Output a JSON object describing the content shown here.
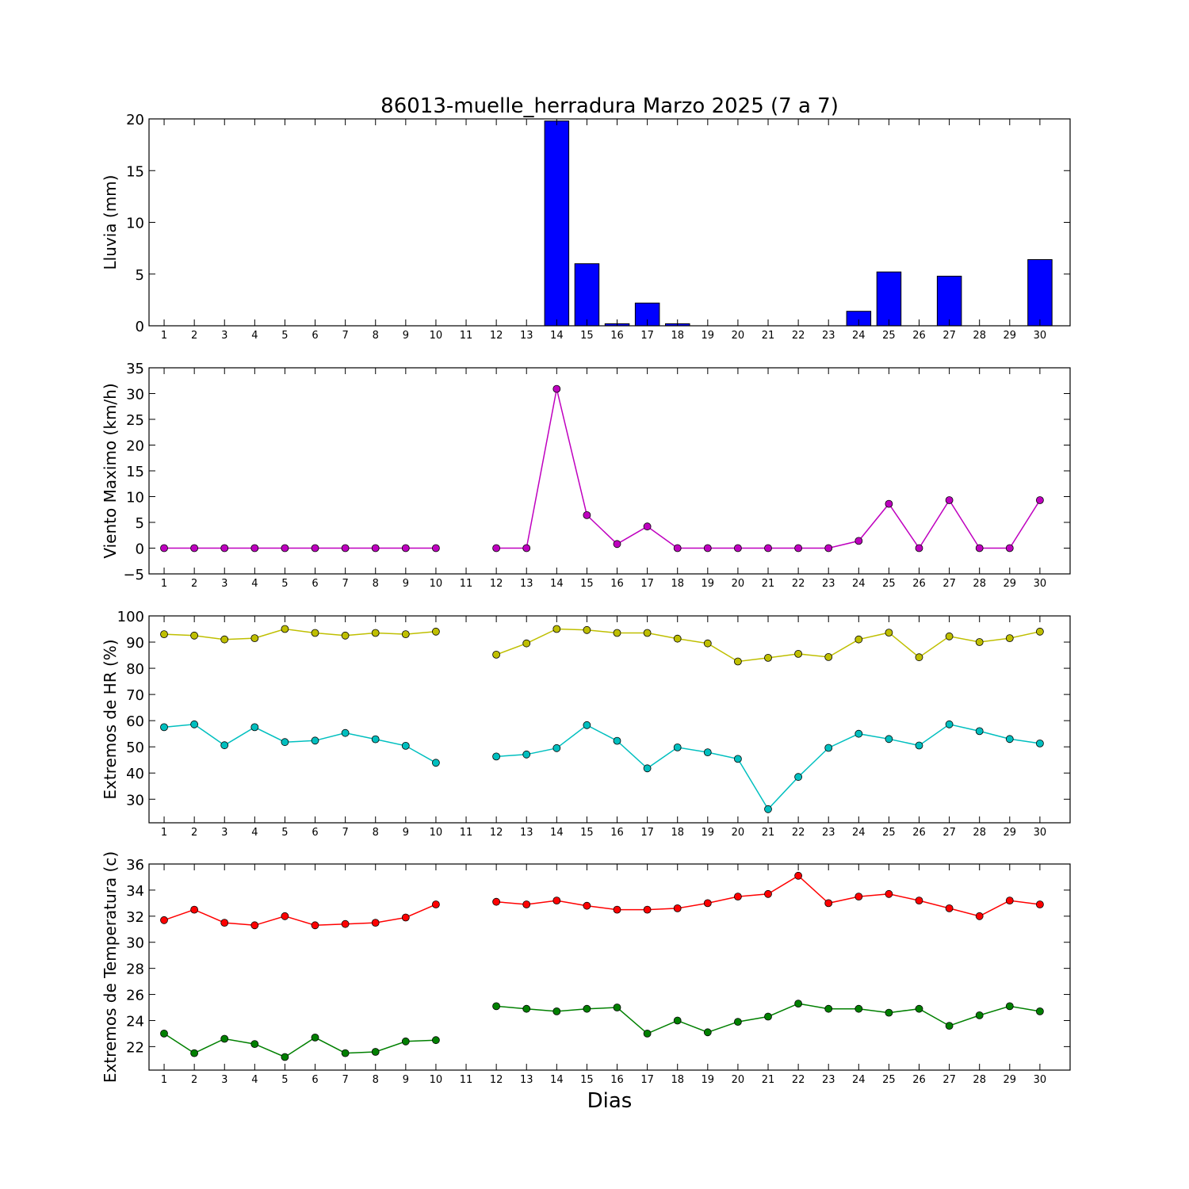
{
  "figure": {
    "title": "86013-muelle_herradura Marzo 2025  (7 a 7)",
    "xlabel": "Dias"
  },
  "chart_data": [
    {
      "id": "lluvia",
      "type": "bar",
      "ylabel": "Lluvia (mm)",
      "ylim": [
        0,
        20
      ],
      "yticks": [
        0,
        5,
        10,
        15,
        20
      ],
      "xlim": [
        0.5,
        31
      ],
      "xticks": [
        1,
        2,
        3,
        4,
        5,
        6,
        7,
        8,
        9,
        10,
        11,
        12,
        13,
        14,
        15,
        16,
        17,
        18,
        19,
        20,
        21,
        22,
        23,
        24,
        25,
        26,
        27,
        28,
        29,
        30
      ],
      "grid": false,
      "series": [
        {
          "color": "#0000ff",
          "x": [
            1,
            2,
            3,
            4,
            5,
            6,
            7,
            8,
            9,
            10,
            11,
            12,
            13,
            14,
            15,
            16,
            17,
            18,
            19,
            20,
            21,
            22,
            23,
            24,
            25,
            26,
            27,
            28,
            29,
            30
          ],
          "values": [
            0,
            0,
            0,
            0,
            0,
            0,
            0,
            0,
            0,
            0,
            0,
            0,
            0,
            19.8,
            6.0,
            0.2,
            2.2,
            0.2,
            0,
            0,
            0,
            0,
            0,
            1.4,
            5.2,
            0,
            4.8,
            0,
            0,
            6.4
          ]
        }
      ]
    },
    {
      "id": "viento",
      "type": "line",
      "ylabel": "Viento Maximo (km/h)",
      "ylim": [
        -5,
        35
      ],
      "yticks": [
        -5,
        0,
        5,
        10,
        15,
        20,
        25,
        30,
        35
      ],
      "xlim": [
        0.5,
        31
      ],
      "xticks": [
        1,
        2,
        3,
        4,
        5,
        6,
        7,
        8,
        9,
        10,
        11,
        12,
        13,
        14,
        15,
        16,
        17,
        18,
        19,
        20,
        21,
        22,
        23,
        24,
        25,
        26,
        27,
        28,
        29,
        30
      ],
      "grid": false,
      "series": [
        {
          "color": "#bf00bf",
          "x": [
            1,
            2,
            3,
            4,
            5,
            6,
            7,
            8,
            9,
            10,
            11,
            12,
            13,
            14,
            15,
            16,
            17,
            18,
            19,
            20,
            21,
            22,
            23,
            24,
            25,
            26,
            27,
            28,
            29,
            30
          ],
          "values": [
            0,
            0,
            0,
            0,
            0,
            0,
            0,
            0,
            0,
            0,
            null,
            0,
            0,
            30.9,
            6.4,
            0.8,
            4.2,
            0,
            0,
            0,
            0,
            0,
            0,
            1.4,
            8.6,
            0,
            9.3,
            0,
            0,
            9.3
          ]
        }
      ]
    },
    {
      "id": "humedad",
      "type": "line",
      "ylabel": "Extremos de HR (%)",
      "ylim": [
        21,
        100
      ],
      "yticks": [
        30,
        40,
        50,
        60,
        70,
        80,
        90,
        100
      ],
      "xlim": [
        0.5,
        31
      ],
      "xticks": [
        1,
        2,
        3,
        4,
        5,
        6,
        7,
        8,
        9,
        10,
        11,
        12,
        13,
        14,
        15,
        16,
        17,
        18,
        19,
        20,
        21,
        22,
        23,
        24,
        25,
        26,
        27,
        28,
        29,
        30
      ],
      "grid": false,
      "series": [
        {
          "color": "#bfbf00",
          "x": [
            1,
            2,
            3,
            4,
            5,
            6,
            7,
            8,
            9,
            10,
            11,
            12,
            13,
            14,
            15,
            16,
            17,
            18,
            19,
            20,
            21,
            22,
            23,
            24,
            25,
            26,
            27,
            28,
            29,
            30
          ],
          "values": [
            93,
            92.5,
            91,
            91.5,
            95,
            93.5,
            92.5,
            93.5,
            93,
            94,
            null,
            85.2,
            89.5,
            95,
            94.6,
            93.5,
            93.5,
            91.3,
            89.5,
            82.6,
            84,
            85.5,
            84.3,
            91,
            93.6,
            84.2,
            92.2,
            90,
            91.5,
            94
          ]
        },
        {
          "color": "#00bfbf",
          "x": [
            1,
            2,
            3,
            4,
            5,
            6,
            7,
            8,
            9,
            10,
            11,
            12,
            13,
            14,
            15,
            16,
            17,
            18,
            19,
            20,
            21,
            22,
            23,
            24,
            25,
            26,
            27,
            28,
            29,
            30
          ],
          "values": [
            57.5,
            58.6,
            50.6,
            57.5,
            51.8,
            52.4,
            55.3,
            52.9,
            50.4,
            43.9,
            null,
            46.3,
            47.1,
            49.5,
            58.3,
            52.3,
            41.8,
            49.8,
            47.9,
            45.4,
            26.2,
            38.5,
            49.6,
            55,
            53,
            50.5,
            58.6,
            56,
            53,
            51.3
          ]
        }
      ]
    },
    {
      "id": "temperatura",
      "type": "line",
      "ylabel": "Extremos de Temperatura (c)",
      "ylim": [
        20.2,
        36
      ],
      "yticks": [
        22,
        24,
        26,
        28,
        30,
        32,
        34,
        36
      ],
      "xlim": [
        0.5,
        31
      ],
      "xticks": [
        1,
        2,
        3,
        4,
        5,
        6,
        7,
        8,
        9,
        10,
        11,
        12,
        13,
        14,
        15,
        16,
        17,
        18,
        19,
        20,
        21,
        22,
        23,
        24,
        25,
        26,
        27,
        28,
        29,
        30
      ],
      "grid": false,
      "series": [
        {
          "color": "#ff0000",
          "x": [
            1,
            2,
            3,
            4,
            5,
            6,
            7,
            8,
            9,
            10,
            11,
            12,
            13,
            14,
            15,
            16,
            17,
            18,
            19,
            20,
            21,
            22,
            23,
            24,
            25,
            26,
            27,
            28,
            29,
            30
          ],
          "values": [
            31.7,
            32.5,
            31.5,
            31.3,
            32,
            31.3,
            31.4,
            31.5,
            31.9,
            32.9,
            null,
            33.1,
            32.9,
            33.2,
            32.8,
            32.5,
            32.5,
            32.6,
            33,
            33.5,
            33.7,
            35.1,
            33,
            33.5,
            33.7,
            33.2,
            32.6,
            32,
            33.2,
            32.9
          ]
        },
        {
          "color": "#008000",
          "x": [
            1,
            2,
            3,
            4,
            5,
            6,
            7,
            8,
            9,
            10,
            11,
            12,
            13,
            14,
            15,
            16,
            17,
            18,
            19,
            20,
            21,
            22,
            23,
            24,
            25,
            26,
            27,
            28,
            29,
            30
          ],
          "values": [
            23,
            21.5,
            22.6,
            22.2,
            21.2,
            22.7,
            21.5,
            21.6,
            22.4,
            22.5,
            null,
            25.1,
            24.9,
            24.7,
            24.9,
            25,
            23,
            24,
            23.1,
            23.9,
            24.3,
            25.3,
            24.9,
            24.9,
            24.6,
            24.9,
            23.6,
            24.4,
            25.1,
            24.7
          ]
        }
      ]
    }
  ]
}
